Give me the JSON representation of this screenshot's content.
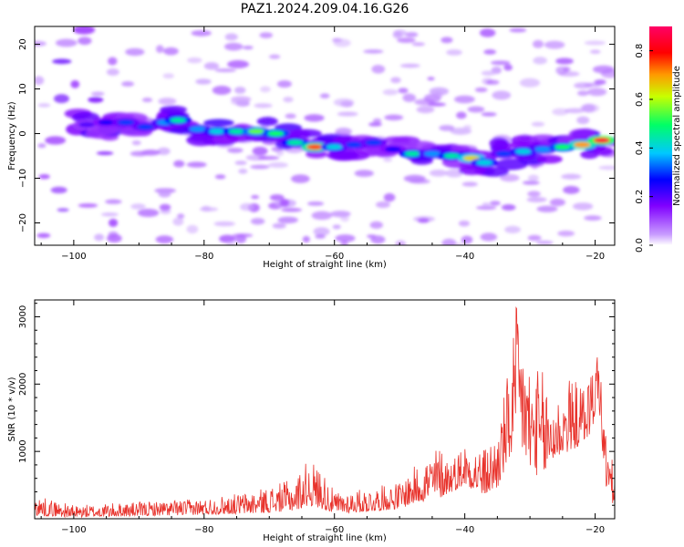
{
  "title": "PAZ1.2024.209.04.16.G26",
  "chart_data": [
    {
      "type": "heatmap",
      "xlabel": "Height of straight line (km)",
      "ylabel": "Frequency (Hz)",
      "xlim": [
        -106,
        -17
      ],
      "ylim": [
        -25,
        24
      ],
      "xticks": [
        -100,
        -80,
        -60,
        -40,
        -20
      ],
      "yticks": [
        20,
        10,
        0,
        -10,
        -20
      ],
      "colorbar": {
        "label": "Normalized spectral amplitude",
        "range": [
          0,
          0.9
        ],
        "ticks": [
          0.0,
          0.2,
          0.4,
          0.6,
          0.8
        ],
        "colors": [
          "#ffffff",
          "#c89bff",
          "#8000ff",
          "#0000ff",
          "#00c8ff",
          "#00ff66",
          "#c8ff00",
          "#ff9900",
          "#ff0000",
          "#ff0066"
        ]
      },
      "ridge": [
        {
          "x": -98,
          "y": 2.0,
          "v": 0.2
        },
        {
          "x": -95,
          "y": 2.5,
          "v": 0.25
        },
        {
          "x": -92,
          "y": 2.5,
          "v": 0.3
        },
        {
          "x": -89,
          "y": 1.5,
          "v": 0.3
        },
        {
          "x": -86,
          "y": 2.5,
          "v": 0.35
        },
        {
          "x": -84,
          "y": 3.0,
          "v": 0.45
        },
        {
          "x": -81,
          "y": 1.0,
          "v": 0.35
        },
        {
          "x": -78,
          "y": 0.5,
          "v": 0.4
        },
        {
          "x": -75,
          "y": 0.5,
          "v": 0.45
        },
        {
          "x": -72,
          "y": 0.5,
          "v": 0.55
        },
        {
          "x": -69,
          "y": 0.0,
          "v": 0.5
        },
        {
          "x": -66,
          "y": -2.0,
          "v": 0.45
        },
        {
          "x": -63,
          "y": -3.0,
          "v": 0.75
        },
        {
          "x": -60,
          "y": -3.0,
          "v": 0.4
        },
        {
          "x": -57,
          "y": -2.5,
          "v": 0.3
        },
        {
          "x": -54,
          "y": -2.0,
          "v": 0.3
        },
        {
          "x": -51,
          "y": -3.5,
          "v": 0.25
        },
        {
          "x": -48,
          "y": -4.5,
          "v": 0.45
        },
        {
          "x": -45,
          "y": -4.5,
          "v": 0.35
        },
        {
          "x": -42,
          "y": -5.0,
          "v": 0.45
        },
        {
          "x": -39,
          "y": -5.5,
          "v": 0.65
        },
        {
          "x": -37,
          "y": -6.5,
          "v": 0.4
        },
        {
          "x": -34,
          "y": -4.5,
          "v": 0.3
        },
        {
          "x": -31,
          "y": -4.0,
          "v": 0.4
        },
        {
          "x": -28,
          "y": -3.5,
          "v": 0.35
        },
        {
          "x": -25,
          "y": -3.0,
          "v": 0.5
        },
        {
          "x": -22,
          "y": -2.5,
          "v": 0.7
        },
        {
          "x": -19,
          "y": -1.5,
          "v": 0.85
        }
      ]
    },
    {
      "type": "line",
      "xlabel": "Height of straight line (km)",
      "ylabel": "SNR (10 * v/v)",
      "xlim": [
        -106,
        -17
      ],
      "ylim": [
        0,
        3250
      ],
      "xticks": [
        -100,
        -80,
        -60,
        -40,
        -20
      ],
      "yticks": [
        1000,
        2000,
        3000
      ],
      "color": "#e8332c",
      "envelope": [
        {
          "x": -106,
          "lo": 50,
          "hi": 350
        },
        {
          "x": -100,
          "lo": 20,
          "hi": 200
        },
        {
          "x": -90,
          "lo": 40,
          "hi": 250
        },
        {
          "x": -80,
          "lo": 60,
          "hi": 300
        },
        {
          "x": -72,
          "lo": 80,
          "hi": 420
        },
        {
          "x": -66,
          "lo": 120,
          "hi": 600
        },
        {
          "x": -64,
          "lo": 200,
          "hi": 900
        },
        {
          "x": -62,
          "lo": 150,
          "hi": 750
        },
        {
          "x": -60,
          "lo": 80,
          "hi": 400
        },
        {
          "x": -55,
          "lo": 100,
          "hi": 450
        },
        {
          "x": -50,
          "lo": 150,
          "hi": 550
        },
        {
          "x": -47,
          "lo": 250,
          "hi": 850
        },
        {
          "x": -44,
          "lo": 300,
          "hi": 1100
        },
        {
          "x": -42,
          "lo": 400,
          "hi": 900
        },
        {
          "x": -40,
          "lo": 500,
          "hi": 1150
        },
        {
          "x": -37,
          "lo": 350,
          "hi": 1050
        },
        {
          "x": -35,
          "lo": 450,
          "hi": 1300
        },
        {
          "x": -33,
          "lo": 900,
          "hi": 2400
        },
        {
          "x": -32,
          "lo": 1200,
          "hi": 3250
        },
        {
          "x": -30,
          "lo": 700,
          "hi": 2300
        },
        {
          "x": -28,
          "lo": 600,
          "hi": 2200
        },
        {
          "x": -26,
          "lo": 900,
          "hi": 1800
        },
        {
          "x": -24,
          "lo": 1000,
          "hi": 2100
        },
        {
          "x": -22,
          "lo": 1100,
          "hi": 2000
        },
        {
          "x": -20.5,
          "lo": 1300,
          "hi": 2250
        },
        {
          "x": -19.5,
          "lo": 1800,
          "hi": 2650
        },
        {
          "x": -18.5,
          "lo": 500,
          "hi": 1400
        },
        {
          "x": -17,
          "lo": 150,
          "hi": 700
        }
      ]
    }
  ]
}
